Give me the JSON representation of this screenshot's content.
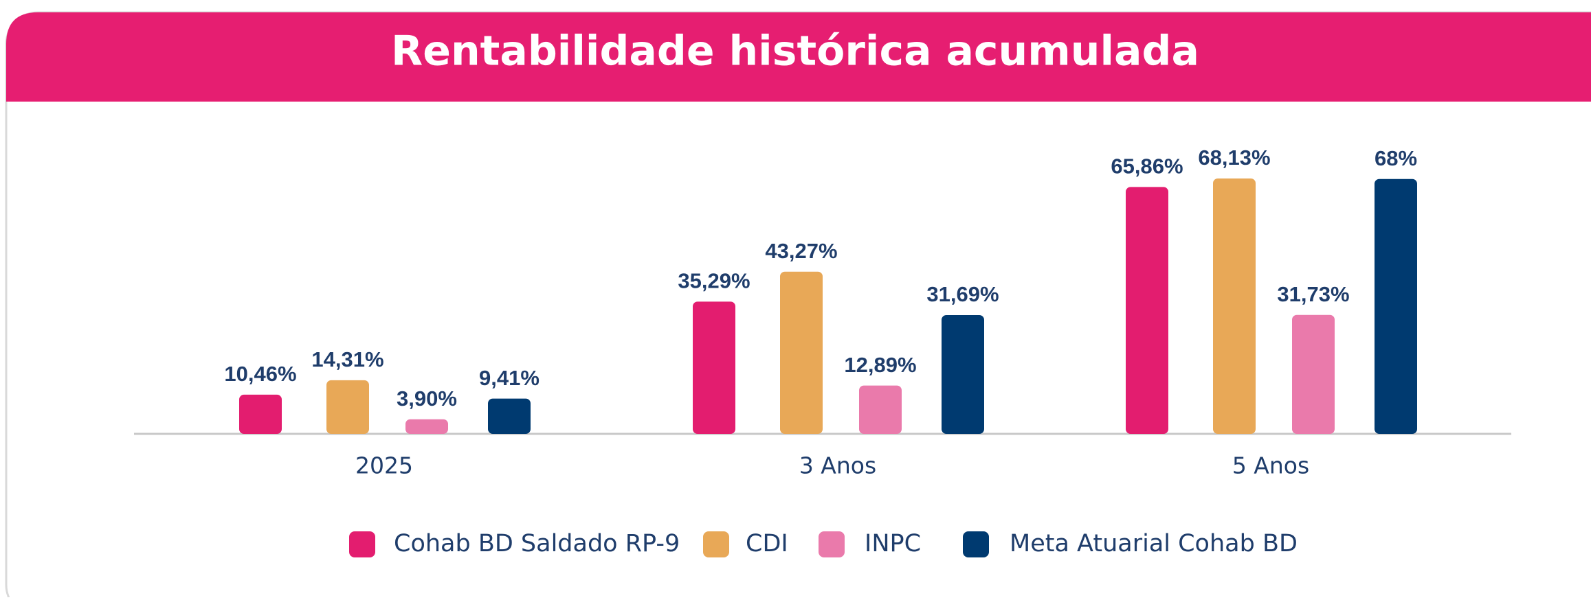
{
  "chart_data": {
    "type": "bar",
    "title": "Rentabilidade histórica acumulada",
    "categories": [
      "2025",
      "3 Anos",
      "5 Anos"
    ],
    "series": [
      {
        "name": "Cohab BD Saldado RP-9",
        "color": "#e31d6f",
        "values": [
          10.46,
          35.29,
          65.86
        ],
        "value_labels": [
          "10,46%",
          "35,29%",
          "65,86%"
        ]
      },
      {
        "name": "CDI",
        "color": "#e8a857",
        "values": [
          14.31,
          43.27,
          68.13
        ],
        "value_labels": [
          "14,31%",
          "43,27%",
          "68,13%"
        ]
      },
      {
        "name": "INPC",
        "color": "#ea7aab",
        "values": [
          3.9,
          12.89,
          31.73
        ],
        "value_labels": [
          "3,90%",
          "12,89%",
          "31,73%"
        ]
      },
      {
        "name": "Meta Atuarial Cohab BD",
        "color": "#003a70",
        "values": [
          9.41,
          31.69,
          68
        ],
        "value_labels": [
          "9,41%",
          "31,69%",
          "68%"
        ]
      }
    ]
  }
}
